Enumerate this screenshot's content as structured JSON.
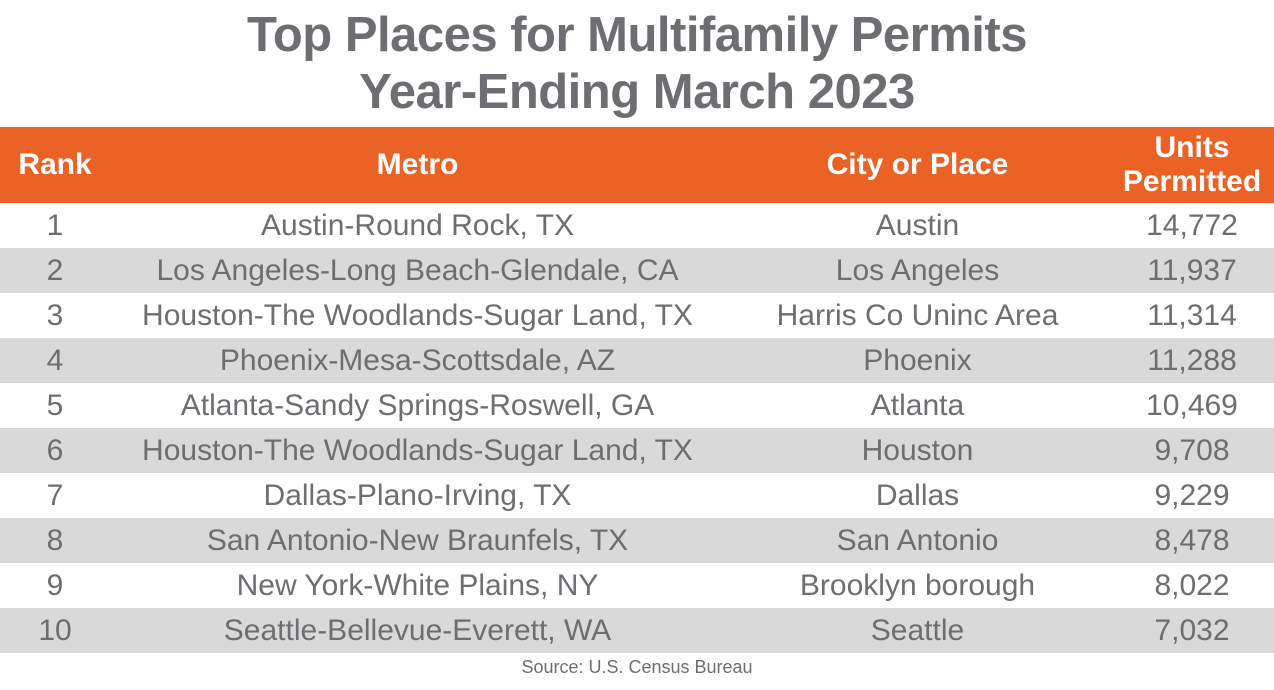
{
  "title": {
    "line1": "Top Places for Multifamily Permits",
    "line2": "Year-Ending March 2023"
  },
  "table": {
    "columns": [
      {
        "key": "rank",
        "label": "Rank"
      },
      {
        "key": "metro",
        "label": "Metro"
      },
      {
        "key": "city",
        "label": "City or Place"
      },
      {
        "key": "units",
        "label": "Units Permitted"
      }
    ],
    "rows": [
      {
        "rank": "1",
        "metro": "Austin-Round Rock, TX",
        "city": "Austin",
        "units": "14,772"
      },
      {
        "rank": "2",
        "metro": "Los Angeles-Long Beach-Glendale, CA",
        "city": "Los Angeles",
        "units": "11,937"
      },
      {
        "rank": "3",
        "metro": "Houston-The Woodlands-Sugar Land, TX",
        "city": "Harris Co Uninc Area",
        "units": "11,314"
      },
      {
        "rank": "4",
        "metro": "Phoenix-Mesa-Scottsdale, AZ",
        "city": "Phoenix",
        "units": "11,288"
      },
      {
        "rank": "5",
        "metro": "Atlanta-Sandy Springs-Roswell, GA",
        "city": "Atlanta",
        "units": "10,469"
      },
      {
        "rank": "6",
        "metro": "Houston-The Woodlands-Sugar Land, TX",
        "city": "Houston",
        "units": "9,708"
      },
      {
        "rank": "7",
        "metro": "Dallas-Plano-Irving, TX",
        "city": "Dallas",
        "units": "9,229"
      },
      {
        "rank": "8",
        "metro": "San Antonio-New Braunfels, TX",
        "city": "San Antonio",
        "units": "8,478"
      },
      {
        "rank": "9",
        "metro": "New York-White Plains, NY",
        "city": "Brooklyn borough",
        "units": "8,022"
      },
      {
        "rank": "10",
        "metro": "Seattle-Bellevue-Everett, WA",
        "city": "Seattle",
        "units": "7,032"
      }
    ]
  },
  "source": "Source: U.S. Census Bureau",
  "colors": {
    "header_bg": "#EA6225",
    "alt_row_bg": "#D9D9D9",
    "text": "#6D6E71",
    "header_text": "#FFFFFF"
  },
  "chart_data": {
    "type": "table",
    "title": "Top Places for Multifamily Permits Year-Ending March 2023",
    "columns": [
      "Rank",
      "Metro",
      "City or Place",
      "Units Permitted"
    ],
    "rows": [
      [
        1,
        "Austin-Round Rock, TX",
        "Austin",
        14772
      ],
      [
        2,
        "Los Angeles-Long Beach-Glendale, CA",
        "Los Angeles",
        11937
      ],
      [
        3,
        "Houston-The Woodlands-Sugar Land, TX",
        "Harris Co Uninc Area",
        11314
      ],
      [
        4,
        "Phoenix-Mesa-Scottsdale, AZ",
        "Phoenix",
        11288
      ],
      [
        5,
        "Atlanta-Sandy Springs-Roswell, GA",
        "Atlanta",
        10469
      ],
      [
        6,
        "Houston-The Woodlands-Sugar Land, TX",
        "Houston",
        9708
      ],
      [
        7,
        "Dallas-Plano-Irving, TX",
        "Dallas",
        9229
      ],
      [
        8,
        "San Antonio-New Braunfels, TX",
        "San Antonio",
        8478
      ],
      [
        9,
        "New York-White Plains, NY",
        "Brooklyn borough",
        8022
      ],
      [
        10,
        "Seattle-Bellevue-Everett, WA",
        "Seattle",
        7032
      ]
    ],
    "source": "Source: U.S. Census Bureau",
    "layout": {
      "header_fill": "#EA6225",
      "alt_row_fill": "#D9D9D9",
      "zebra_striping": true,
      "value_alignment": "center"
    }
  }
}
